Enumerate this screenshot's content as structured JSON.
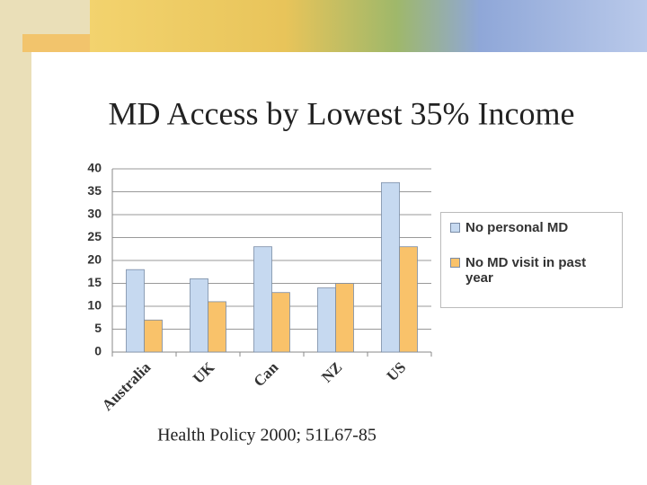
{
  "chart_data": {
    "type": "bar",
    "title": "MD Access by Lowest 35% Income",
    "categories": [
      "Australia",
      "UK",
      "Can",
      "NZ",
      "US"
    ],
    "series": [
      {
        "name": "No personal  MD",
        "color": "#c6d9f0",
        "values": [
          18,
          16,
          23,
          14,
          37
        ]
      },
      {
        "name": "No MD visit in past year",
        "color": "#f9c26a",
        "values": [
          7,
          11,
          13,
          15,
          23
        ]
      }
    ],
    "ylim": [
      0,
      40
    ],
    "yticks": [
      0,
      5,
      10,
      15,
      20,
      25,
      30,
      35,
      40
    ],
    "grid": true,
    "legend": "right",
    "caption": "Health Policy 2000; 51L67-85"
  }
}
